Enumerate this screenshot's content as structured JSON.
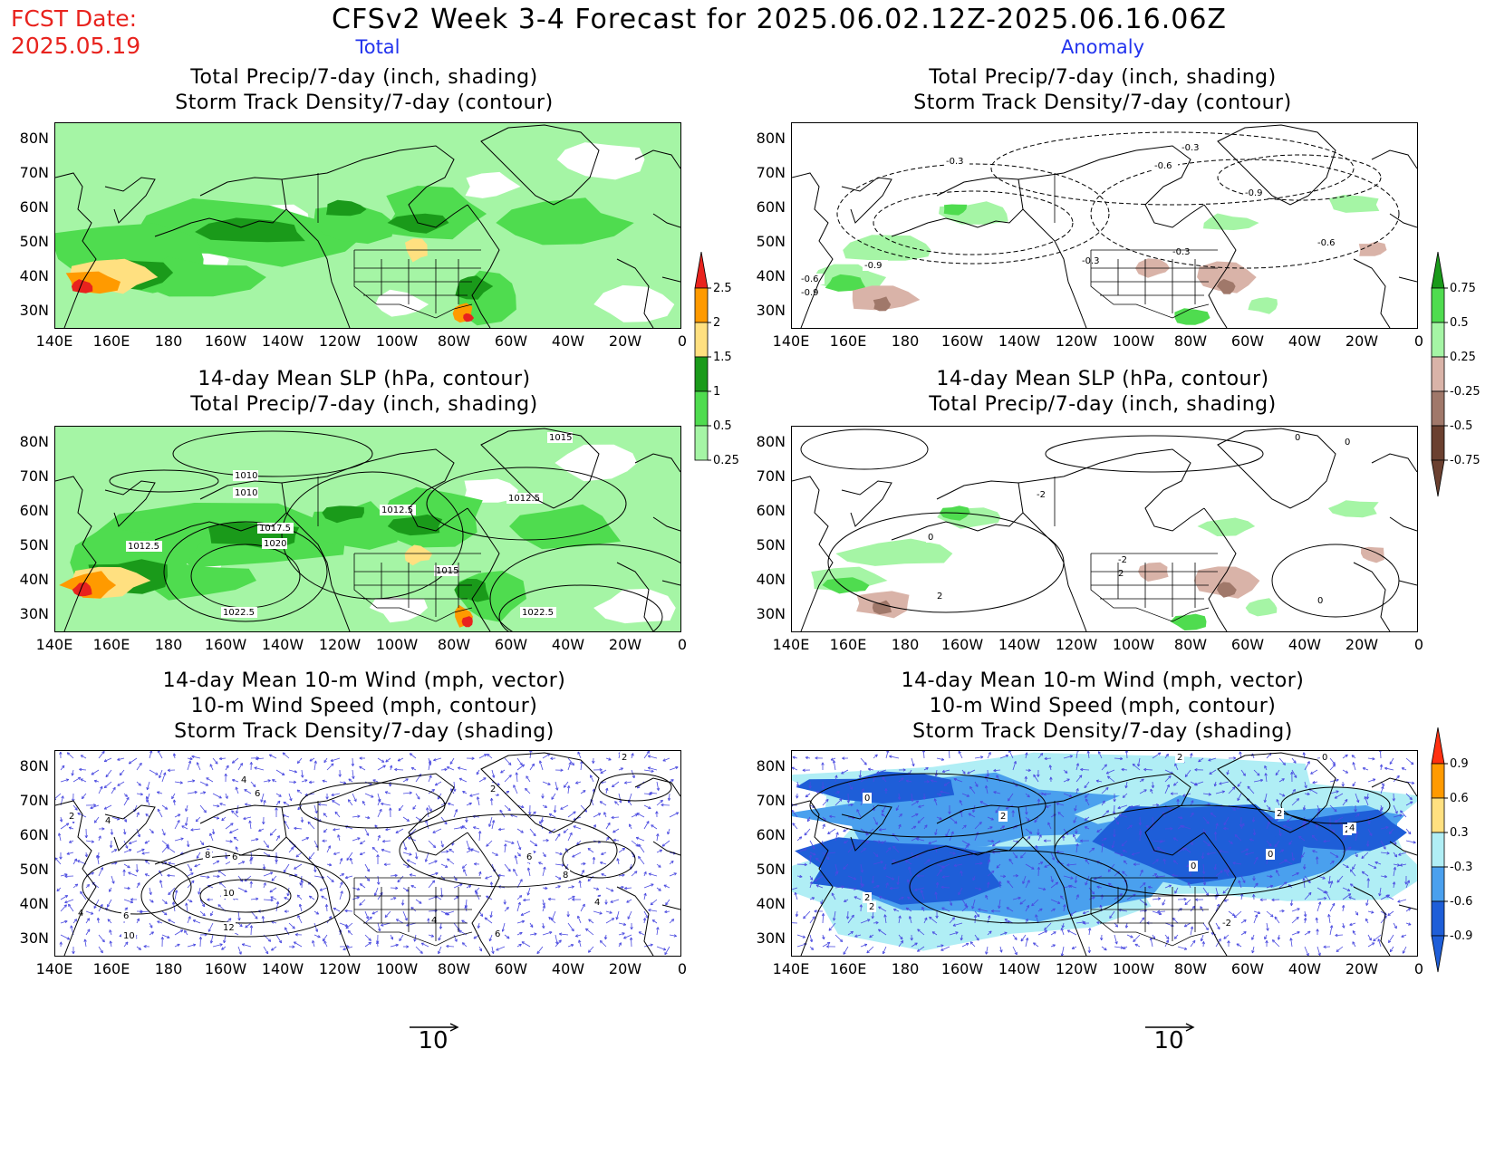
{
  "header": {
    "fcst_label": "FCST Date:",
    "fcst_date": "2025.05.19",
    "title": "CFSv2 Week 3-4 Forecast for 2025.06.02.12Z-2025.06.16.06Z",
    "col_total": "Total",
    "col_anomaly": "Anomaly"
  },
  "panels": {
    "left1": [
      "Total Precip/7-day (inch, shading)",
      "Storm Track Density/7-day (contour)"
    ],
    "right1": [
      "Total Precip/7-day (inch, shading)",
      "Storm Track Density/7-day (contour)"
    ],
    "left2": [
      "14-day Mean SLP (hPa, contour)",
      "Total Precip/7-day (inch, shading)"
    ],
    "right2": [
      "14-day Mean SLP (hPa, contour)",
      "Total Precip/7-day (inch, shading)"
    ],
    "left3": [
      "14-day Mean 10-m Wind (mph, vector)",
      "10-m Wind Speed (mph, contour)",
      "Storm Track Density/7-day (shading)"
    ],
    "right3": [
      "14-day Mean 10-m Wind (mph, vector)",
      "10-m Wind Speed (mph, contour)",
      "Storm Track Density/7-day (shading)"
    ]
  },
  "axes": {
    "lat_labels": [
      "80N",
      "70N",
      "60N",
      "50N",
      "40N",
      "30N"
    ],
    "lon_labels": [
      "140E",
      "160E",
      "180",
      "160W",
      "140W",
      "120W",
      "100W",
      "80W",
      "60W",
      "40W",
      "20W",
      "0"
    ]
  },
  "colorbars": {
    "precip_total": {
      "labels": [
        "2.5",
        "2",
        "1.5",
        "1",
        "0.5",
        "0.25"
      ],
      "colors": [
        "#e8231e",
        "#ff9a00",
        "#ffe080",
        "#1a9a1a",
        "#4fdc4f",
        "#a5f5a5"
      ]
    },
    "precip_anom": {
      "labels": [
        "0.75",
        "0.5",
        "0.25",
        "-0.25",
        "-0.5",
        "-0.75"
      ],
      "colors": [
        "#1a9a1a",
        "#4fdc4f",
        "#a5f5a5",
        "#d9b3a8",
        "#a0786a",
        "#6b4030"
      ]
    },
    "storm_anom": {
      "labels": [
        "0.9",
        "0.6",
        "0.3",
        "-0.3",
        "-0.6",
        "-0.9"
      ],
      "colors": [
        "#ff3010",
        "#ff9a00",
        "#ffe080",
        "#b0eef5",
        "#4aa0ee",
        "#1e5ed8"
      ]
    }
  },
  "contour_labels": {
    "left2": [
      "1015",
      "1010",
      "1010",
      "1012.5",
      "1012.5",
      "1017.5",
      "1020",
      "1012.5",
      "1015",
      "1022.5",
      "1022.5"
    ],
    "right1": [
      "-0.3",
      "-0.3",
      "-0.6",
      "-0.9",
      "-0.6",
      "-0.9",
      "-0.3",
      "-0.6",
      "-0.9",
      "-0.3"
    ],
    "right2": [
      "0",
      "0",
      "-2",
      "0",
      "-2",
      "2",
      "2",
      "0"
    ],
    "left3": [
      "2",
      "4",
      "6",
      "2",
      "4",
      "8",
      "6",
      "10",
      "12",
      "10",
      "4",
      "6",
      "8",
      "6",
      "4",
      "2",
      "4",
      "6"
    ],
    "right3": [
      "2",
      "0",
      "2",
      "2",
      "0",
      "2",
      "4",
      "0",
      "0",
      "2",
      "2",
      "-2"
    ]
  },
  "vector_ref": {
    "label": "10"
  }
}
